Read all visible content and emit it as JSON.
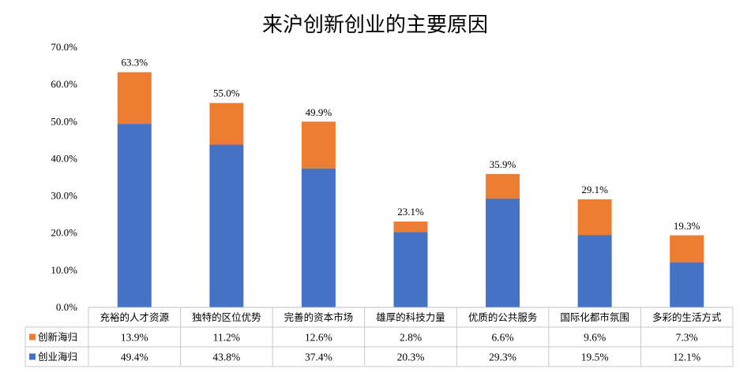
{
  "chart_data": {
    "type": "bar",
    "stacked": true,
    "title": "来沪创新创业的主要原因",
    "categories": [
      "充裕的人才资源",
      "独特的区位优势",
      "完善的资本市场",
      "雄厚的科技力量",
      "优质的公共服务",
      "国际化都市氛围",
      "多彩的生活方式"
    ],
    "series": [
      {
        "name": "创业海归",
        "color": "#4472C4",
        "values": [
          49.4,
          43.8,
          37.4,
          20.3,
          29.3,
          19.5,
          12.1
        ],
        "labels": [
          "49.4%",
          "43.8%",
          "37.4%",
          "20.3%",
          "29.3%",
          "19.5%",
          "12.1%"
        ]
      },
      {
        "name": "创新海归",
        "color": "#ED7D31",
        "values": [
          13.9,
          11.2,
          12.6,
          2.8,
          6.6,
          9.6,
          7.3
        ],
        "labels": [
          "13.9%",
          "11.2%",
          "12.6%",
          "2.8%",
          "6.6%",
          "9.6%",
          "7.3%"
        ]
      }
    ],
    "totals": [
      63.3,
      55.0,
      49.9,
      23.1,
      35.9,
      29.1,
      19.3
    ],
    "total_labels": [
      "63.3%",
      "55.0%",
      "49.9%",
      "23.1%",
      "35.9%",
      "29.1%",
      "19.3%"
    ],
    "ylim": [
      0,
      70
    ],
    "yticks": [
      "0.0%",
      "10.0%",
      "20.0%",
      "30.0%",
      "40.0%",
      "50.0%",
      "60.0%",
      "70.0%"
    ],
    "grid": false,
    "data_table": true
  }
}
